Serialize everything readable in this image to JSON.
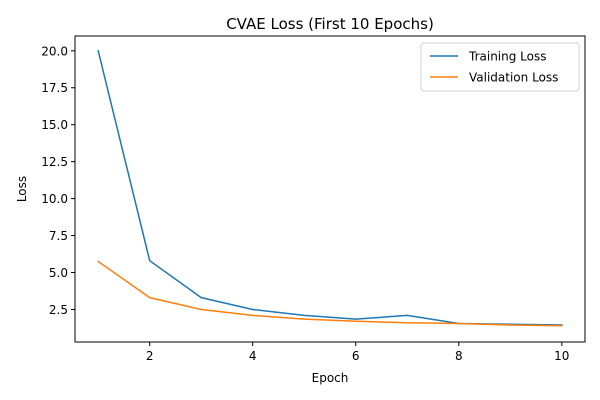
{
  "chart_data": {
    "type": "line",
    "title": "CVAE Loss (First 10 Epochs)",
    "xlabel": "Epoch",
    "ylabel": "Loss",
    "x": [
      1,
      2,
      3,
      4,
      5,
      6,
      7,
      8,
      9,
      10
    ],
    "xlim": [
      0.55,
      10.45
    ],
    "ylim": [
      0.3,
      21.0
    ],
    "xticks": [
      2,
      4,
      6,
      8,
      10
    ],
    "xtick_labels": [
      "2",
      "4",
      "6",
      "8",
      "10"
    ],
    "yticks": [
      2.5,
      5.0,
      7.5,
      10.0,
      12.5,
      15.0,
      17.5,
      20.0
    ],
    "ytick_labels": [
      "2.5",
      "5.0",
      "7.5",
      "10.0",
      "12.5",
      "15.0",
      "17.5",
      "20.0"
    ],
    "grid": false,
    "legend_position": "top-right",
    "series": [
      {
        "name": "Training Loss",
        "color": "#1f77b4",
        "values": [
          20.0,
          5.8,
          3.3,
          2.5,
          2.1,
          1.85,
          2.1,
          1.55,
          1.5,
          1.45
        ]
      },
      {
        "name": "Validation Loss",
        "color": "#ff7f0e",
        "values": [
          5.75,
          3.3,
          2.5,
          2.1,
          1.85,
          1.7,
          1.6,
          1.55,
          1.45,
          1.4
        ]
      }
    ]
  }
}
